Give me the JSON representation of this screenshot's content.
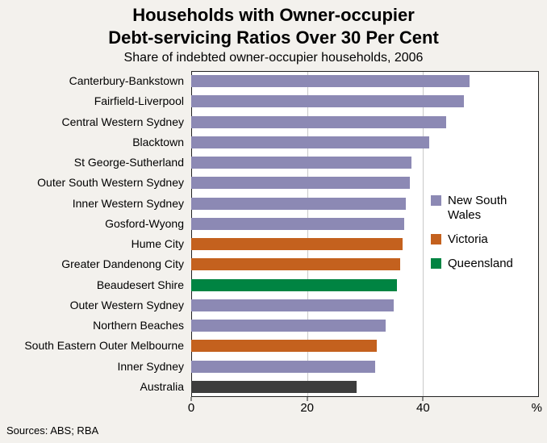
{
  "header": {
    "title_line1": "Households with Owner-occupier",
    "title_line2": "Debt-servicing Ratios Over 30 Per Cent",
    "subtitle": "Share of indebted owner-occupier households, 2006"
  },
  "footer": {
    "sources": "Sources: ABS; RBA"
  },
  "chart_data": {
    "type": "bar",
    "orientation": "horizontal",
    "title": "Households with Owner-occupier Debt-servicing Ratios Over 30 Per Cent",
    "subtitle": "Share of indebted owner-occupier households, 2006",
    "unit": "%",
    "xlim": [
      0,
      60
    ],
    "xticks": [
      0,
      20,
      40
    ],
    "grid": true,
    "legend_position": "right-inside",
    "colors": {
      "nsw": "#8c89b4",
      "vic": "#c4611e",
      "qld": "#008442",
      "australia": "#3d3d3d"
    },
    "legend": [
      {
        "label": "New South Wales",
        "series": "nsw"
      },
      {
        "label": "Victoria",
        "series": "vic"
      },
      {
        "label": "Queensland",
        "series": "qld"
      }
    ],
    "bars": [
      {
        "category": "Canterbury-Bankstown",
        "value": 48,
        "series": "nsw"
      },
      {
        "category": "Fairfield-Liverpool",
        "value": 47,
        "series": "nsw"
      },
      {
        "category": "Central Western Sydney",
        "value": 44,
        "series": "nsw"
      },
      {
        "category": "Blacktown",
        "value": 41,
        "series": "nsw"
      },
      {
        "category": "St George-Sutherland",
        "value": 38,
        "series": "nsw"
      },
      {
        "category": "Outer South Western Sydney",
        "value": 37.7,
        "series": "nsw"
      },
      {
        "category": "Inner Western Sydney",
        "value": 37,
        "series": "nsw"
      },
      {
        "category": "Gosford-Wyong",
        "value": 36.8,
        "series": "nsw"
      },
      {
        "category": "Hume City",
        "value": 36.5,
        "series": "vic"
      },
      {
        "category": "Greater Dandenong City",
        "value": 36,
        "series": "vic"
      },
      {
        "category": "Beaudesert Shire",
        "value": 35.5,
        "series": "qld"
      },
      {
        "category": "Outer Western Sydney",
        "value": 35,
        "series": "nsw"
      },
      {
        "category": "Northern Beaches",
        "value": 33.5,
        "series": "nsw"
      },
      {
        "category": "South Eastern Outer Melbourne",
        "value": 32,
        "series": "vic"
      },
      {
        "category": "Inner Sydney",
        "value": 31.8,
        "series": "nsw"
      },
      {
        "category": "Australia",
        "value": 28.5,
        "series": "australia"
      }
    ]
  }
}
